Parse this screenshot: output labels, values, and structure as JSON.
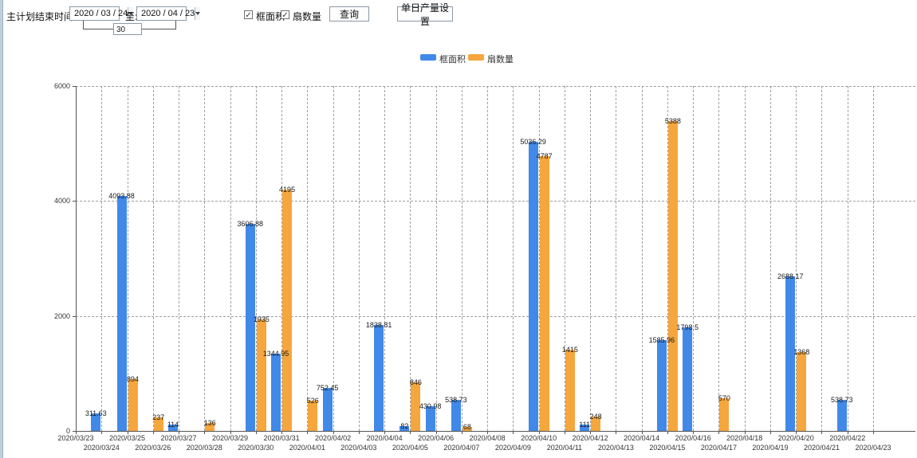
{
  "toolbar": {
    "plan_end_label": "主计划结束时间:",
    "date_from": "2020 / 03 / 24",
    "to_label": "至:",
    "date_to": "2020 / 04 / 23",
    "days_between": "30",
    "checkboxes": [
      {
        "label": "框面积",
        "checked": true
      },
      {
        "label": "扇数量",
        "checked": true
      }
    ],
    "check_glyph": "✓",
    "query_button": "查询",
    "daily_output_button": "单日产量设置"
  },
  "legend": [
    {
      "label": "框面积",
      "color": "#4189e8"
    },
    {
      "label": "扇数量",
      "color": "#f5a63d"
    }
  ],
  "colors": {
    "bar_blue": "#4189e8",
    "bar_orange": "#f5a63d",
    "axis": "#555555",
    "grid": "#a0a0a0"
  },
  "chart_data": {
    "type": "bar",
    "title": "",
    "xlabel": "",
    "ylabel": "",
    "ylim": [
      0,
      6000
    ],
    "yticks": [
      0,
      2000,
      4000,
      6000
    ],
    "grid": true,
    "legend_position": "top",
    "x_tick_rows": 2,
    "categories": [
      "2020/03/23",
      "2020/03/24",
      "2020/03/25",
      "2020/03/26",
      "2020/03/27",
      "2020/03/28",
      "2020/03/29",
      "2020/03/30",
      "2020/03/31",
      "2020/04/01",
      "2020/04/02",
      "2020/04/03",
      "2020/04/04",
      "2020/04/05",
      "2020/04/06",
      "2020/04/07",
      "2020/04/08",
      "2020/04/09",
      "2020/04/10",
      "2020/04/11",
      "2020/04/12",
      "2020/04/13",
      "2020/04/14",
      "2020/04/15",
      "2020/04/16",
      "2020/04/17",
      "2020/04/18",
      "2020/04/19",
      "2020/04/20",
      "2020/04/21",
      "2020/04/22",
      "2020/04/23"
    ],
    "series": [
      {
        "name": "框面积",
        "color": "#4189e8",
        "values": [
          null,
          311.63,
          4093.88,
          null,
          114,
          null,
          null,
          3606.88,
          1344.95,
          null,
          752.45,
          null,
          1838.81,
          82,
          430.98,
          538.73,
          null,
          null,
          5036.29,
          null,
          111,
          null,
          null,
          1585.96,
          1798.5,
          null,
          null,
          null,
          2688.17,
          null,
          538.73,
          null
        ]
      },
      {
        "name": "扇数量",
        "color": "#f5a63d",
        "values": [
          null,
          null,
          894,
          237,
          null,
          136,
          null,
          1935,
          4195,
          526,
          null,
          null,
          null,
          846,
          null,
          68,
          null,
          null,
          4787,
          1415,
          248,
          null,
          null,
          5388,
          null,
          570,
          null,
          null,
          1368,
          null,
          null,
          null
        ]
      }
    ]
  }
}
